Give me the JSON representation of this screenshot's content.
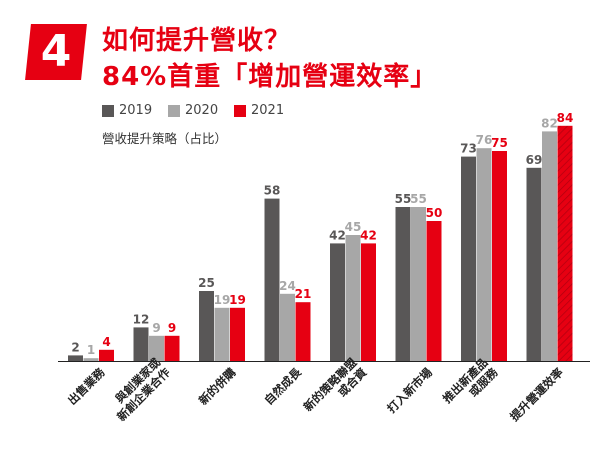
{
  "header": {
    "badge": "4",
    "title_line1": "如何提升營收？",
    "title_line2": "84%首重「增加營運效率」"
  },
  "legend": [
    {
      "label": "2019",
      "color": "#595757"
    },
    {
      "label": "2020",
      "color": "#a7a7a7"
    },
    {
      "label": "2021",
      "color": "#e60012"
    }
  ],
  "subtitle": "營收提升策略（占比）",
  "chart_data": {
    "type": "bar",
    "ylim": [
      0,
      90
    ],
    "categories": [
      [
        "出售業務"
      ],
      [
        "與創業家或",
        "新創企業合作"
      ],
      [
        "新的併購"
      ],
      [
        "自然成長"
      ],
      [
        "新的策略聯盟",
        "或合資"
      ],
      [
        "打入新市場"
      ],
      [
        "推出新產品",
        "或服務"
      ],
      [
        "提升營運效率"
      ]
    ],
    "series": [
      {
        "name": "2019",
        "color": "#595757",
        "values": [
          2,
          12,
          25,
          58,
          42,
          55,
          73,
          69
        ]
      },
      {
        "name": "2020",
        "color": "#a7a7a7",
        "values": [
          1,
          9,
          19,
          24,
          45,
          55,
          76,
          82
        ]
      },
      {
        "name": "2021",
        "color": "#e60012",
        "values": [
          4,
          9,
          19,
          21,
          42,
          50,
          75,
          84
        ]
      }
    ],
    "highlight_category_index": 7
  }
}
